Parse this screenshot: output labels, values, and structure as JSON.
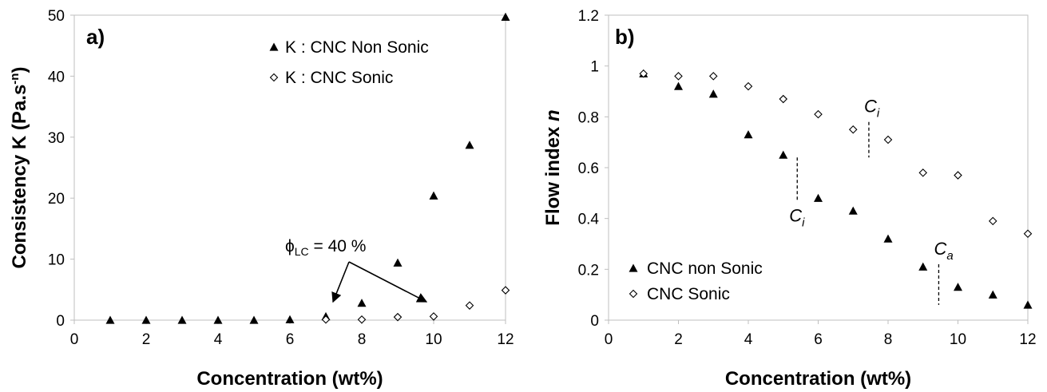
{
  "chart_data": [
    {
      "type": "scatter",
      "panel_label": "a)",
      "xlabel": "Concentration (wt%)",
      "ylabel": "Consistency K (Pa.s",
      "ylabel_sup": "-n",
      "ylabel_end": ")",
      "xlim": [
        0,
        12
      ],
      "ylim": [
        0,
        50
      ],
      "xticks": [
        "0",
        "2",
        "4",
        "6",
        "8",
        "10",
        "12"
      ],
      "yticks": [
        "0",
        "10",
        "20",
        "30",
        "40",
        "50"
      ],
      "legend_position": "top-right",
      "series": [
        {
          "name": "K : CNC Non Sonic",
          "marker": "triangle-filled",
          "x": [
            1,
            2,
            3,
            4,
            5,
            6,
            7,
            8,
            9,
            10,
            11,
            12
          ],
          "y": [
            0,
            0,
            0,
            0,
            0,
            0.1,
            0.6,
            2.8,
            9.4,
            20.4,
            28.7,
            49.7
          ]
        },
        {
          "name": "K : CNC Sonic",
          "marker": "diamond-open",
          "x": [
            7,
            8,
            9,
            10,
            11,
            12
          ],
          "y": [
            0.1,
            0.1,
            0.5,
            0.6,
            2.4,
            4.9
          ]
        }
      ],
      "annotation": {
        "phi": "ϕ",
        "sub": "LC",
        "text": " = 40 %",
        "arrow_targets": [
          [
            7.2,
            3
          ],
          [
            9.8,
            3
          ]
        ]
      }
    },
    {
      "type": "scatter",
      "panel_label": "b)",
      "xlabel": "Concentration (wt%)",
      "ylabel": "Flow index ",
      "ylabel_italic": "n",
      "xlim": [
        0,
        12
      ],
      "ylim": [
        0,
        1.2
      ],
      "xticks": [
        "0",
        "2",
        "4",
        "6",
        "8",
        "10",
        "12"
      ],
      "yticks": [
        "0",
        "0.2",
        "0.4",
        "0.6",
        "0.8",
        "1",
        "1.2"
      ],
      "legend_position": "bottom-left",
      "series": [
        {
          "name": "CNC non Sonic",
          "marker": "triangle-filled",
          "x": [
            1,
            2,
            3,
            4,
            5,
            6,
            7,
            8,
            9,
            10,
            11,
            12
          ],
          "y": [
            0.97,
            0.92,
            0.89,
            0.73,
            0.65,
            0.48,
            0.43,
            0.32,
            0.21,
            0.13,
            0.1,
            0.06
          ]
        },
        {
          "name": "CNC Sonic",
          "marker": "diamond-open",
          "x": [
            1,
            2,
            3,
            4,
            5,
            6,
            7,
            8,
            9,
            10,
            11,
            12
          ],
          "y": [
            0.97,
            0.96,
            0.96,
            0.92,
            0.87,
            0.81,
            0.75,
            0.71,
            0.58,
            0.57,
            0.39,
            0.34
          ]
        }
      ],
      "markers": [
        {
          "label": "C",
          "sub": "i",
          "x": 7.45,
          "y_from": 0.64,
          "y_to": 0.78,
          "label_side": "above"
        },
        {
          "label": "C",
          "sub": "i",
          "x": 5.4,
          "y_from": 0.47,
          "y_to": 0.64,
          "label_side": "below"
        },
        {
          "label": "C",
          "sub": "a",
          "x": 9.45,
          "y_from": 0.06,
          "y_to": 0.22,
          "label_side": "above"
        }
      ]
    }
  ]
}
